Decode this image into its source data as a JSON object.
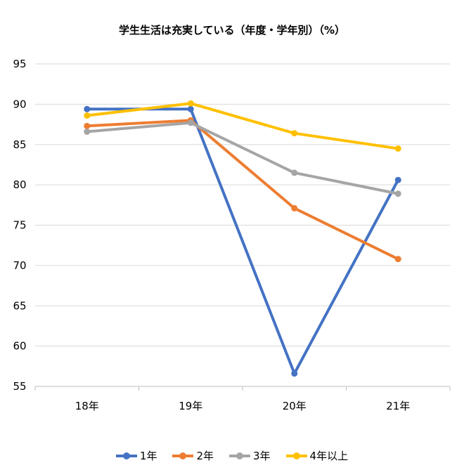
{
  "chart_data": {
    "type": "line",
    "title": "学生生活は充実している（年度・学年別）（%）",
    "categories": [
      "18年",
      "19年",
      "20年",
      "21年"
    ],
    "ylim": [
      55,
      95
    ],
    "yticks": [
      55,
      60,
      65,
      70,
      75,
      80,
      85,
      90,
      95
    ],
    "grid": true,
    "legend_position": "bottom",
    "series": [
      {
        "name": "1年",
        "color": "#4472C4",
        "values": [
          89.4,
          89.4,
          56.6,
          80.6
        ]
      },
      {
        "name": "2年",
        "color": "#ED7D31",
        "values": [
          87.3,
          88.0,
          77.1,
          70.8
        ]
      },
      {
        "name": "3年",
        "color": "#A5A5A5",
        "values": [
          86.6,
          87.7,
          81.5,
          78.9
        ]
      },
      {
        "name": "4年以上",
        "color": "#FFC000",
        "values": [
          88.6,
          90.1,
          86.4,
          84.5
        ]
      }
    ]
  }
}
